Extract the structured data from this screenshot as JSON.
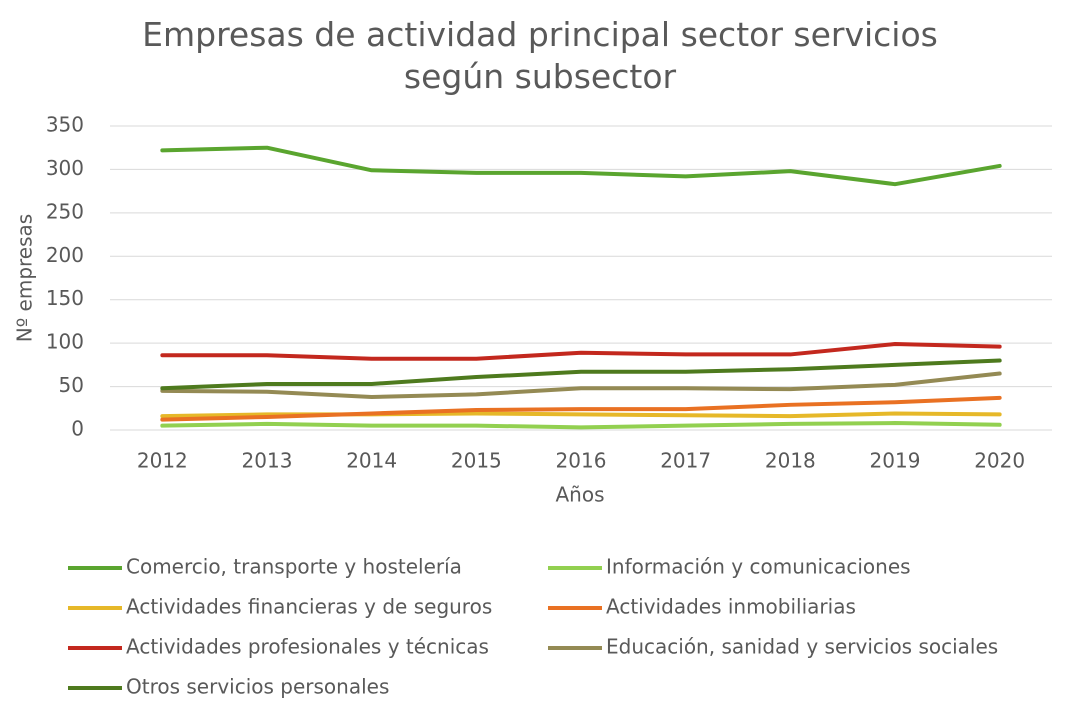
{
  "chart_data": {
    "type": "line",
    "title": "Empresas de actividad principal sector servicios según subsector",
    "x_label": "Años",
    "y_label": "Nº empresas",
    "categories": [
      "2012",
      "2013",
      "2014",
      "2015",
      "2016",
      "2017",
      "2018",
      "2019",
      "2020"
    ],
    "series": [
      {
        "name": "Comercio, transporte y hostelería",
        "color": "#5aa52f",
        "values": [
          322,
          325,
          299,
          296,
          296,
          292,
          298,
          283,
          304
        ]
      },
      {
        "name": "Información y comunicaciones",
        "color": "#92d050",
        "values": [
          5,
          7,
          5,
          5,
          3,
          5,
          7,
          8,
          6
        ]
      },
      {
        "name": "Actividades financieras y de seguros",
        "color": "#e6b829",
        "values": [
          16,
          18,
          18,
          19,
          18,
          17,
          16,
          19,
          18
        ]
      },
      {
        "name": "Actividades inmobiliarias",
        "color": "#e97123",
        "values": [
          12,
          15,
          19,
          23,
          24,
          24,
          29,
          32,
          37
        ]
      },
      {
        "name": "Actividades profesionales y técnicas",
        "color": "#c3281e",
        "values": [
          86,
          86,
          82,
          82,
          89,
          87,
          87,
          99,
          96
        ]
      },
      {
        "name": "Educación, sanidad y servicios sociales",
        "color": "#948a54",
        "values": [
          45,
          44,
          38,
          41,
          48,
          48,
          47,
          52,
          65
        ]
      },
      {
        "name": "Otros servicios personales",
        "color": "#4e7a1e",
        "values": [
          48,
          53,
          53,
          61,
          67,
          67,
          70,
          75,
          80
        ]
      }
    ],
    "ylim": [
      0,
      350
    ],
    "yticks": [
      0,
      50,
      100,
      150,
      200,
      250,
      300,
      350
    ],
    "grid": true
  }
}
